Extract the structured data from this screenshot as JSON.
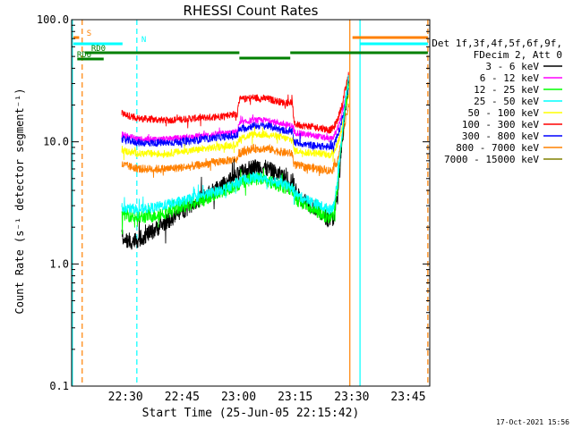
{
  "chart_data": {
    "type": "line",
    "title": "RHESSI Count Rates",
    "xlabel": "Start Time (25-Jun-05 22:15:42)",
    "ylabel": "Count Rate (s⁻¹ detector segment⁻¹)",
    "x_unit": "minutes after 22:15:42",
    "xlim": [
      0,
      95
    ],
    "ylim": [
      0.1,
      100
    ],
    "y_scale": "log",
    "x_ticks": [
      {
        "x": 14.3,
        "label": "22:30"
      },
      {
        "x": 29.3,
        "label": "22:45"
      },
      {
        "x": 44.3,
        "label": "23:00"
      },
      {
        "x": 59.3,
        "label": "23:15"
      },
      {
        "x": 74.3,
        "label": "23:30"
      },
      {
        "x": 89.3,
        "label": "23:45"
      }
    ],
    "y_ticks": [
      {
        "y": 0.1,
        "label": "0.1"
      },
      {
        "y": 1,
        "label": "1.0"
      },
      {
        "y": 10,
        "label": "10.0"
      },
      {
        "y": 100,
        "label": "100.0"
      }
    ],
    "legend": {
      "position": "right",
      "header": [
        "Det 1f,3f,4f,5f,6f,9f,",
        "FDecim 2, Att 0"
      ],
      "entries": [
        {
          "label": "3 - 6 keV",
          "color": "#000000"
        },
        {
          "label": "6 - 12 keV",
          "color": "#ff00ff"
        },
        {
          "label": "12 - 25 keV",
          "color": "#00ff00"
        },
        {
          "label": "25 - 50 keV",
          "color": "#00ffff"
        },
        {
          "label": "50 - 100 keV",
          "color": "#ffff00"
        },
        {
          "label": "100 - 300 keV",
          "color": "#ff0000"
        },
        {
          "label": "300 - 800 keV",
          "color": "#0000ff"
        },
        {
          "label": "800 - 7000 keV",
          "color": "#ff8000"
        },
        {
          "label": "7000 - 15000 keV",
          "color": "#808000"
        }
      ]
    },
    "series": [
      {
        "name": "100 - 300 keV",
        "color": "#ff0000",
        "noise": 0.07,
        "x": [
          13.3,
          18,
          25,
          32,
          38,
          44,
          44.3,
          48,
          52,
          56,
          58.6,
          59,
          62,
          66,
          68.5,
          69.5,
          70.5,
          71.5,
          72.5,
          73.5
        ],
        "y": [
          17,
          15.5,
          15,
          15.5,
          16,
          17,
          22,
          23,
          22.5,
          21,
          21,
          14,
          13.5,
          13,
          12.5,
          13,
          15,
          19,
          26,
          35
        ]
      },
      {
        "name": "6 - 12 keV",
        "color": "#ff00ff",
        "noise": 0.06,
        "x": [
          13.3,
          18,
          25,
          32,
          38,
          44,
          44.3,
          48,
          52,
          56,
          58.6,
          59,
          62,
          66,
          68.5,
          69.5,
          70.5,
          71.5,
          72.5,
          73.5
        ],
        "y": [
          11.5,
          10.5,
          10.5,
          11,
          11.5,
          12,
          14,
          15,
          15,
          14,
          13.5,
          12,
          11.5,
          11,
          10.5,
          11,
          12.5,
          16,
          22,
          30
        ]
      },
      {
        "name": "300 - 800 keV",
        "color": "#0000ff",
        "noise": 0.07,
        "x": [
          13.3,
          18,
          25,
          32,
          38,
          44,
          44.3,
          48,
          52,
          56,
          58.6,
          59,
          62,
          66,
          68.5,
          69.5,
          70.5,
          71.5,
          72.5,
          73.5
        ],
        "y": [
          10.5,
          9.8,
          9.8,
          10.2,
          10.8,
          11.2,
          12.5,
          13.5,
          13.5,
          12.5,
          12,
          10,
          9.5,
          9.2,
          9,
          9.5,
          11,
          14,
          20,
          28
        ]
      },
      {
        "name": "50 - 100 keV",
        "color": "#ffff00",
        "noise": 0.07,
        "x": [
          13.3,
          18,
          25,
          32,
          38,
          44,
          44.3,
          48,
          52,
          56,
          58.6,
          59,
          62,
          66,
          68.5,
          69.5,
          70.5,
          71.5,
          72.5,
          73.5
        ],
        "y": [
          8.5,
          8,
          8,
          8.5,
          9,
          9.5,
          10.5,
          11.5,
          11.5,
          10.8,
          10.3,
          8.5,
          8.2,
          8,
          7.8,
          8.2,
          9.5,
          12,
          18,
          25
        ]
      },
      {
        "name": "800 - 7000 keV",
        "color": "#ff8000",
        "noise": 0.08,
        "x": [
          13.3,
          18,
          25,
          32,
          38,
          44,
          44.3,
          48,
          52,
          56,
          58.6,
          59,
          62,
          66,
          68.5,
          69.5,
          70.5,
          71.5,
          72.5,
          73.5
        ],
        "y": [
          6.5,
          6,
          6,
          6.3,
          6.8,
          7.2,
          8,
          8.8,
          8.8,
          8.2,
          8,
          6.5,
          6.2,
          6,
          5.8,
          6,
          7,
          9.5,
          14,
          20
        ]
      },
      {
        "name": "3 - 6 keV",
        "color": "#000000",
        "noise": 0.16,
        "x": [
          13.3,
          15,
          18,
          22,
          26,
          30,
          34,
          38,
          42,
          44,
          46,
          48,
          50,
          52,
          56,
          58.6,
          60,
          64,
          67,
          68.5,
          69.5,
          70.5,
          71.5,
          72.5,
          73.5
        ],
        "y": [
          1.7,
          1.5,
          1.6,
          1.9,
          2.3,
          2.8,
          3.4,
          4.0,
          4.8,
          5.3,
          5.8,
          6.2,
          6.3,
          6.0,
          5.2,
          4.8,
          3.6,
          3.0,
          2.5,
          2.3,
          2.4,
          3.5,
          8,
          18,
          32
        ]
      },
      {
        "name": "12 - 25 keV",
        "color": "#00ff00",
        "noise": 0.13,
        "x": [
          13.3,
          18,
          22,
          26,
          30,
          34,
          38,
          42,
          44,
          46,
          48,
          50,
          52,
          56,
          58.6,
          60,
          64,
          67,
          68.5,
          69.5,
          70.5,
          71.5,
          72.5,
          73.5
        ],
        "y": [
          2.6,
          2.4,
          2.5,
          2.7,
          3.0,
          3.3,
          3.7,
          4.2,
          4.5,
          4.8,
          5.0,
          5.0,
          4.8,
          4.3,
          4.0,
          3.3,
          2.8,
          2.5,
          2.4,
          2.6,
          4,
          9,
          19,
          32
        ]
      },
      {
        "name": "25 - 50 keV",
        "color": "#00ffff",
        "noise": 0.1,
        "x": [
          13.3,
          18,
          22,
          26,
          30,
          34,
          38,
          42,
          44,
          46,
          48,
          50,
          52,
          56,
          58.6,
          60,
          64,
          67,
          68.5,
          69.5,
          70.5,
          71.5,
          72.5,
          73.5
        ],
        "y": [
          2.9,
          2.8,
          2.9,
          3.1,
          3.3,
          3.6,
          3.9,
          4.3,
          4.6,
          4.9,
          5.1,
          5.1,
          4.9,
          4.5,
          4.2,
          3.6,
          3.2,
          2.9,
          2.8,
          3.0,
          4.5,
          10,
          20,
          33
        ]
      }
    ],
    "attenuator_states": [
      {
        "label": "S",
        "color": "#ff8000",
        "segments": [
          [
            0.5,
            2.0
          ],
          [
            74.5,
            94.5
          ]
        ]
      },
      {
        "label": "N",
        "color": "#00ffff",
        "segments": [
          [
            0.5,
            13.5
          ],
          [
            76.5,
            94.5
          ]
        ]
      },
      {
        "label": "RD0",
        "color": "#008000",
        "segments": [
          [
            3.5,
            44.5
          ],
          [
            44.5,
            58.0
          ],
          [
            58.0,
            94.5
          ]
        ]
      },
      {
        "label": "RD6",
        "color": "#008000",
        "segments": [
          [
            1.5,
            8.5
          ]
        ]
      }
    ],
    "vertical_markers": [
      {
        "x": 0.2,
        "color": "#00ffff",
        "style": "solid"
      },
      {
        "x": 2.8,
        "color": "#ff8000",
        "style": "dashed"
      },
      {
        "x": 17.3,
        "color": "#00ffff",
        "style": "dashed"
      },
      {
        "x": 73.8,
        "color": "#ff8000",
        "style": "solid"
      },
      {
        "x": 76.5,
        "color": "#00ffff",
        "style": "solid"
      },
      {
        "x": 94.5,
        "color": "#ff8000",
        "style": "dashed"
      }
    ]
  },
  "footer": {
    "timestamp": "17-Oct-2021 15:56"
  }
}
